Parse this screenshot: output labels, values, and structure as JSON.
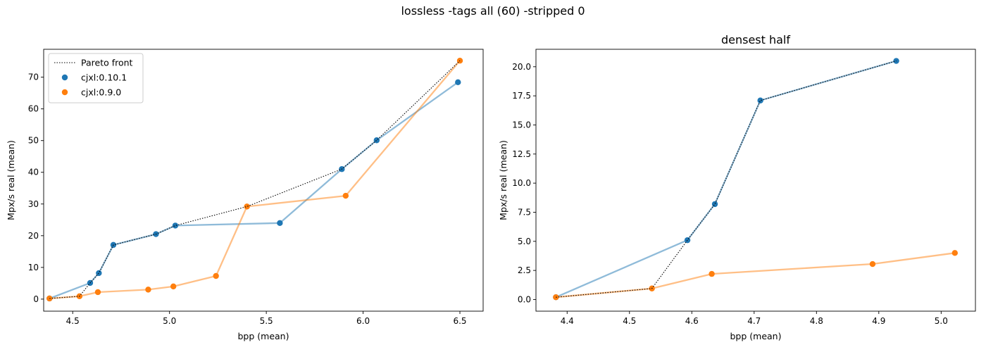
{
  "figure": {
    "suptitle": "lossless -tags all (60) -stripped 0"
  },
  "colors": {
    "cjxl_0_10_1": "#1f77b4",
    "cjxl_0_9_0": "#ff7f0e",
    "pareto": "#000000"
  },
  "chart_data": [
    {
      "type": "line",
      "title": "",
      "xlabel": "bpp (mean)",
      "ylabel": "Mpx/s real (mean)",
      "xlim": [
        4.35,
        6.62
      ],
      "ylim": [
        -3.8,
        78.8
      ],
      "xticks": [
        4.5,
        5.0,
        5.5,
        6.0,
        6.5
      ],
      "xtick_labels": [
        "4.5",
        "5.0",
        "5.5",
        "6.0",
        "6.5"
      ],
      "yticks": [
        0,
        10,
        20,
        30,
        40,
        50,
        60,
        70
      ],
      "ytick_labels": [
        "0",
        "10",
        "20",
        "30",
        "40",
        "50",
        "60",
        "70"
      ],
      "legend": {
        "position": "top-left",
        "entries": [
          "Pareto front",
          "cjxl:0.10.1",
          "cjxl:0.9.0"
        ]
      },
      "series": [
        {
          "name": "cjxl:0.10.1",
          "points": [
            [
              4.38,
              0.2
            ],
            [
              4.59,
              5.1
            ],
            [
              4.635,
              8.2
            ],
            [
              4.71,
              17.1
            ],
            [
              4.93,
              20.5
            ],
            [
              5.03,
              23.2
            ],
            [
              5.57,
              24.0
            ],
            [
              5.89,
              41.0
            ],
            [
              6.07,
              50.1
            ],
            [
              6.49,
              68.4
            ]
          ]
        },
        {
          "name": "cjxl:0.9.0",
          "points": [
            [
              4.38,
              0.2
            ],
            [
              4.535,
              0.9
            ],
            [
              4.63,
              2.2
            ],
            [
              4.89,
              3.0
            ],
            [
              5.02,
              4.0
            ],
            [
              5.24,
              7.3
            ],
            [
              5.4,
              29.2
            ],
            [
              5.91,
              32.6
            ],
            [
              6.5,
              75.2
            ]
          ]
        }
      ],
      "pareto": [
        [
          4.38,
          0.2
        ],
        [
          4.535,
          0.9
        ],
        [
          4.59,
          5.1
        ],
        [
          4.635,
          8.2
        ],
        [
          4.71,
          17.1
        ],
        [
          4.93,
          20.5
        ],
        [
          5.03,
          23.2
        ],
        [
          5.4,
          29.2
        ],
        [
          5.89,
          41.0
        ],
        [
          6.07,
          50.1
        ],
        [
          6.5,
          75.2
        ]
      ]
    },
    {
      "type": "line",
      "title": "densest half",
      "xlabel": "bpp (mean)",
      "ylabel": "Mpx/s real (mean)",
      "xlim": [
        4.35,
        5.055
      ],
      "ylim": [
        -1.0,
        21.5
      ],
      "xticks": [
        4.4,
        4.5,
        4.6,
        4.7,
        4.8,
        4.9,
        5.0
      ],
      "xtick_labels": [
        "4.4",
        "4.5",
        "4.6",
        "4.7",
        "4.8",
        "4.9",
        "5.0"
      ],
      "yticks": [
        0,
        2.5,
        5,
        7.5,
        10,
        12.5,
        15,
        17.5,
        20
      ],
      "ytick_labels": [
        "0.0",
        "2.5",
        "5.0",
        "7.5",
        "10.0",
        "12.5",
        "15.0",
        "17.5",
        "20.0"
      ],
      "series": [
        {
          "name": "cjxl:0.10.1",
          "points": [
            [
              4.382,
              0.2
            ],
            [
              4.593,
              5.1
            ],
            [
              4.637,
              8.2
            ],
            [
              4.71,
              17.1
            ],
            [
              4.928,
              20.5
            ]
          ]
        },
        {
          "name": "cjxl:0.9.0",
          "points": [
            [
              4.382,
              0.2
            ],
            [
              4.536,
              0.95
            ],
            [
              4.632,
              2.2
            ],
            [
              4.89,
              3.05
            ],
            [
              5.022,
              4.0
            ]
          ]
        }
      ],
      "pareto": [
        [
          4.382,
          0.2
        ],
        [
          4.536,
          0.95
        ],
        [
          4.593,
          5.1
        ],
        [
          4.637,
          8.2
        ],
        [
          4.71,
          17.1
        ],
        [
          4.928,
          20.5
        ]
      ]
    }
  ]
}
